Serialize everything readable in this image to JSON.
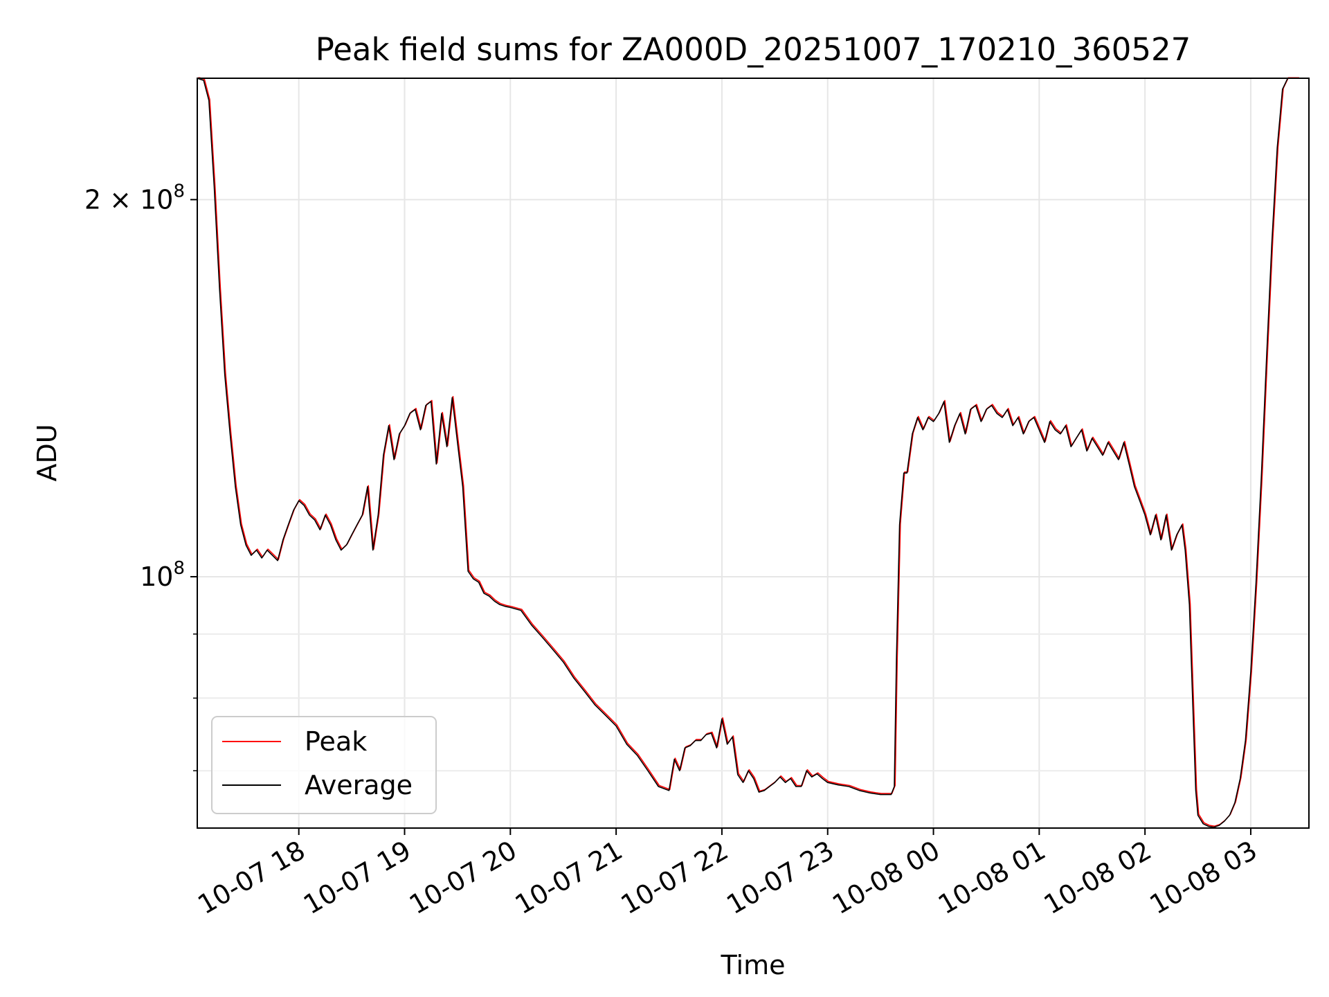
{
  "chart_data": {
    "type": "line",
    "title": "Peak field sums for ZA000D_20251007_170210_360527",
    "xlabel": "Time",
    "ylabel": "ADU",
    "yscale": "log",
    "ylim": [
      63000000,
      250000000
    ],
    "xlim": [
      17.04,
      27.55
    ],
    "grid": true,
    "legend_position": "lower-left",
    "xticks": [
      {
        "value": 18,
        "label": "10-07 18"
      },
      {
        "value": 19,
        "label": "10-07 19"
      },
      {
        "value": 20,
        "label": "10-07 20"
      },
      {
        "value": 21,
        "label": "10-07 21"
      },
      {
        "value": 22,
        "label": "10-07 22"
      },
      {
        "value": 23,
        "label": "10-07 23"
      },
      {
        "value": 24,
        "label": "10-08 00"
      },
      {
        "value": 25,
        "label": "10-08 01"
      },
      {
        "value": 26,
        "label": "10-08 02"
      },
      {
        "value": 27,
        "label": "10-08 03"
      }
    ],
    "yticks_major": [
      {
        "value": 100000000,
        "base": "10",
        "exp": "8",
        "mult": ""
      },
      {
        "value": 200000000,
        "base": "10",
        "exp": "8",
        "mult": "2 × "
      }
    ],
    "yticks_minor": [
      70000000,
      80000000,
      90000000
    ],
    "x_hours": [
      17.04,
      17.1,
      17.15,
      17.2,
      17.25,
      17.3,
      17.35,
      17.4,
      17.45,
      17.5,
      17.55,
      17.6,
      17.65,
      17.7,
      17.75,
      17.8,
      17.85,
      17.9,
      17.95,
      18.0,
      18.05,
      18.1,
      18.15,
      18.2,
      18.25,
      18.3,
      18.35,
      18.4,
      18.45,
      18.5,
      18.55,
      18.6,
      18.65,
      18.7,
      18.75,
      18.8,
      18.85,
      18.9,
      18.95,
      19.0,
      19.05,
      19.1,
      19.15,
      19.2,
      19.25,
      19.3,
      19.35,
      19.4,
      19.45,
      19.5,
      19.55,
      19.6,
      19.65,
      19.7,
      19.75,
      19.8,
      19.85,
      19.9,
      19.95,
      20.0,
      20.1,
      20.2,
      20.3,
      20.4,
      20.5,
      20.6,
      20.7,
      20.8,
      20.9,
      21.0,
      21.1,
      21.2,
      21.3,
      21.4,
      21.5,
      21.55,
      21.6,
      21.65,
      21.7,
      21.75,
      21.8,
      21.85,
      21.9,
      21.95,
      22.0,
      22.05,
      22.1,
      22.15,
      22.2,
      22.25,
      22.3,
      22.35,
      22.4,
      22.45,
      22.5,
      22.55,
      22.6,
      22.65,
      22.7,
      22.75,
      22.8,
      22.85,
      22.9,
      22.95,
      23.0,
      23.1,
      23.2,
      23.3,
      23.4,
      23.5,
      23.6,
      23.63,
      23.65,
      23.68,
      23.72,
      23.75,
      23.8,
      23.85,
      23.9,
      23.95,
      24.0,
      24.05,
      24.1,
      24.15,
      24.2,
      24.25,
      24.3,
      24.35,
      24.4,
      24.45,
      24.5,
      24.55,
      24.6,
      24.65,
      24.7,
      24.75,
      24.8,
      24.85,
      24.9,
      24.95,
      25.0,
      25.05,
      25.1,
      25.15,
      25.2,
      25.25,
      25.3,
      25.35,
      25.4,
      25.45,
      25.5,
      25.55,
      25.6,
      25.65,
      25.7,
      25.75,
      25.8,
      25.85,
      25.9,
      25.95,
      26.0,
      26.05,
      26.1,
      26.15,
      26.2,
      26.25,
      26.3,
      26.35,
      26.38,
      26.42,
      26.45,
      26.48,
      26.5,
      26.55,
      26.6,
      26.65,
      26.7,
      26.75,
      26.8,
      26.85,
      26.9,
      26.95,
      27.0,
      27.05,
      27.1,
      27.15,
      27.2,
      27.25,
      27.3,
      27.35,
      27.4,
      27.45,
      27.5,
      27.55
    ],
    "series": [
      {
        "name": "Peak",
        "color": "#ff0000",
        "values": [
          250000000,
          249000000,
          240000000,
          205000000,
          170000000,
          145000000,
          130000000,
          118000000,
          110000000,
          106000000,
          104000000,
          105000000,
          103500000,
          105000000,
          104000000,
          103000000,
          107000000,
          110000000,
          113000000,
          115000000,
          114000000,
          112000000,
          111000000,
          109000000,
          112000000,
          110000000,
          107000000,
          105000000,
          106000000,
          108000000,
          110000000,
          112000000,
          118000000,
          105000000,
          112000000,
          125000000,
          132000000,
          124000000,
          130000000,
          132000000,
          135000000,
          136000000,
          131000000,
          137000000,
          138000000,
          123000000,
          135000000,
          127000000,
          139000000,
          128000000,
          118000000,
          101000000,
          99600000,
          99000000,
          97000000,
          96500000,
          95600000,
          95000000,
          94700000,
          94500000,
          94000000,
          91500000,
          89500000,
          87500000,
          85500000,
          83000000,
          81000000,
          79000000,
          77500000,
          76000000,
          73500000,
          72000000,
          70000000,
          68000000,
          67500000,
          71500000,
          70000000,
          73000000,
          73300000,
          74000000,
          74000000,
          74800000,
          75000000,
          73000000,
          77000000,
          73500000,
          74500000,
          69500000,
          68500000,
          70000000,
          69000000,
          67300000,
          67500000,
          68000000,
          68500000,
          69200000,
          68500000,
          69000000,
          68000000,
          68000000,
          70000000,
          69200000,
          69600000,
          69000000,
          68500000,
          68200000,
          68000000,
          67500000,
          67200000,
          67000000,
          67000000,
          68000000,
          86000000,
          110000000,
          121000000,
          121000000,
          130000000,
          134000000,
          131000000,
          134000000,
          133000000,
          135000000,
          138000000,
          128000000,
          132000000,
          135000000,
          130000000,
          136000000,
          137000000,
          133000000,
          136000000,
          137000000,
          135000000,
          134000000,
          136000000,
          132000000,
          134000000,
          130000000,
          133000000,
          134000000,
          131000000,
          128000000,
          133000000,
          131000000,
          130000000,
          132000000,
          127000000,
          129000000,
          131000000,
          126000000,
          129000000,
          127000000,
          125000000,
          128000000,
          126000000,
          124000000,
          128000000,
          123000000,
          118000000,
          115000000,
          112000000,
          108000000,
          112000000,
          107000000,
          112000000,
          105000000,
          108000000,
          110000000,
          105000000,
          95000000,
          80000000,
          67500000,
          64500000,
          63500000,
          63200000,
          63100000,
          63300000,
          63800000,
          64500000,
          66000000,
          69000000,
          74000000,
          84000000,
          99000000,
          120000000,
          150000000,
          185000000,
          220000000,
          245000000,
          250000000,
          250000000,
          250000000
        ]
      },
      {
        "name": "Average",
        "color": "#000000",
        "values": [
          250000000,
          249000000,
          240000000,
          205000000,
          170000000,
          145000000,
          130000000,
          118000000,
          110000000,
          106000000,
          104000000,
          105000000,
          103500000,
          105000000,
          104000000,
          103000000,
          107000000,
          110000000,
          113000000,
          115000000,
          114000000,
          112000000,
          111000000,
          109000000,
          112000000,
          110000000,
          107000000,
          105000000,
          106000000,
          108000000,
          110000000,
          112000000,
          118000000,
          105000000,
          112000000,
          125000000,
          132000000,
          124000000,
          130000000,
          132000000,
          135000000,
          136000000,
          131000000,
          137000000,
          138000000,
          123000000,
          135000000,
          127000000,
          139000000,
          128000000,
          118000000,
          101000000,
          99600000,
          99000000,
          97000000,
          96500000,
          95600000,
          95000000,
          94700000,
          94500000,
          94000000,
          91500000,
          89500000,
          87500000,
          85500000,
          83000000,
          81000000,
          79000000,
          77500000,
          76000000,
          73500000,
          72000000,
          70000000,
          68000000,
          67500000,
          71500000,
          70000000,
          73000000,
          73300000,
          74000000,
          74000000,
          74800000,
          75000000,
          73000000,
          77000000,
          73500000,
          74500000,
          69500000,
          68500000,
          70000000,
          69000000,
          67300000,
          67500000,
          68000000,
          68500000,
          69200000,
          68500000,
          69000000,
          68000000,
          68000000,
          70000000,
          69200000,
          69600000,
          69000000,
          68500000,
          68200000,
          68000000,
          67500000,
          67200000,
          67000000,
          67000000,
          68000000,
          86000000,
          110000000,
          121000000,
          121000000,
          130000000,
          134000000,
          131000000,
          134000000,
          133000000,
          135000000,
          138000000,
          128000000,
          132000000,
          135000000,
          130000000,
          136000000,
          137000000,
          133000000,
          136000000,
          137000000,
          135000000,
          134000000,
          136000000,
          132000000,
          134000000,
          130000000,
          133000000,
          134000000,
          131000000,
          128000000,
          133000000,
          131000000,
          130000000,
          132000000,
          127000000,
          129000000,
          131000000,
          126000000,
          129000000,
          127000000,
          125000000,
          128000000,
          126000000,
          124000000,
          128000000,
          123000000,
          118000000,
          115000000,
          112000000,
          108000000,
          112000000,
          107000000,
          112000000,
          105000000,
          108000000,
          110000000,
          105000000,
          95000000,
          80000000,
          67500000,
          64500000,
          63500000,
          63200000,
          63100000,
          63300000,
          63800000,
          64500000,
          66000000,
          69000000,
          74000000,
          84000000,
          99000000,
          120000000,
          150000000,
          185000000,
          220000000,
          245000000,
          250000000,
          250000000,
          250000000
        ]
      }
    ]
  }
}
